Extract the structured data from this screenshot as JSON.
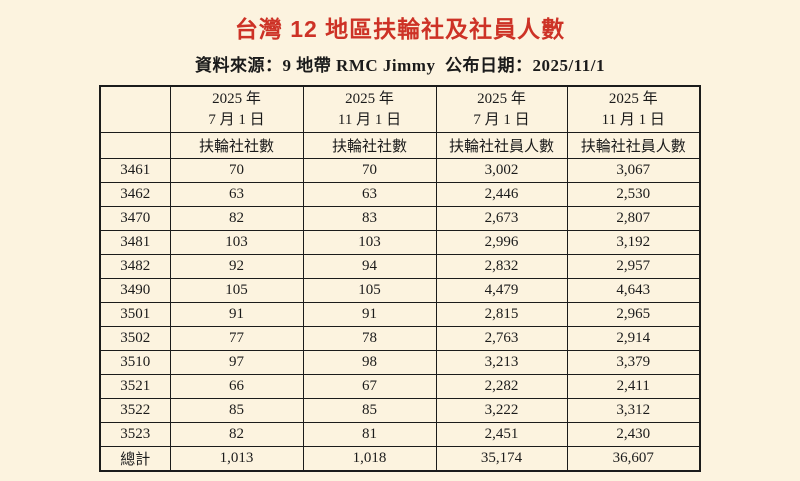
{
  "page": {
    "title": "台灣 12 地區扶輪社及社員人數",
    "subtitle": "資料來源：9 地帶 RMC Jimmy  公布日期：2025/11/1"
  },
  "colors": {
    "background": "#FCF3DF",
    "title_red": "#CD3226",
    "border": "#1b1b1b"
  },
  "table": {
    "columns": [
      {
        "period_line1": "2025 年",
        "period_line2": "7 月 1 日",
        "metric": "扶輪社社數"
      },
      {
        "period_line1": "2025 年",
        "period_line2": "11 月 1 日",
        "metric": "扶輪社社數"
      },
      {
        "period_line1": "2025 年",
        "period_line2": "7 月 1 日",
        "metric": "扶輪社社員人數"
      },
      {
        "period_line1": "2025 年",
        "period_line2": "11 月 1 日",
        "metric": "扶輪社社員人數"
      }
    ],
    "rows": [
      {
        "district": "3461",
        "values": [
          "70",
          "70",
          "3,002",
          "3,067"
        ]
      },
      {
        "district": "3462",
        "values": [
          "63",
          "63",
          "2,446",
          "2,530"
        ]
      },
      {
        "district": "3470",
        "values": [
          "82",
          "83",
          "2,673",
          "2,807"
        ]
      },
      {
        "district": "3481",
        "values": [
          "103",
          "103",
          "2,996",
          "3,192"
        ]
      },
      {
        "district": "3482",
        "values": [
          "92",
          "94",
          "2,832",
          "2,957"
        ]
      },
      {
        "district": "3490",
        "values": [
          "105",
          "105",
          "4,479",
          "4,643"
        ]
      },
      {
        "district": "3501",
        "values": [
          "91",
          "91",
          "2,815",
          "2,965"
        ]
      },
      {
        "district": "3502",
        "values": [
          "77",
          "78",
          "2,763",
          "2,914"
        ]
      },
      {
        "district": "3510",
        "values": [
          "97",
          "98",
          "3,213",
          "3,379"
        ]
      },
      {
        "district": "3521",
        "values": [
          "66",
          "67",
          "2,282",
          "2,411"
        ]
      },
      {
        "district": "3522",
        "values": [
          "85",
          "85",
          "3,222",
          "3,312"
        ]
      },
      {
        "district": "3523",
        "values": [
          "82",
          "81",
          "2,451",
          "2,430"
        ]
      }
    ],
    "total": {
      "label": "總計",
      "values": [
        "1,013",
        "1,018",
        "35,174",
        "36,607"
      ]
    }
  }
}
